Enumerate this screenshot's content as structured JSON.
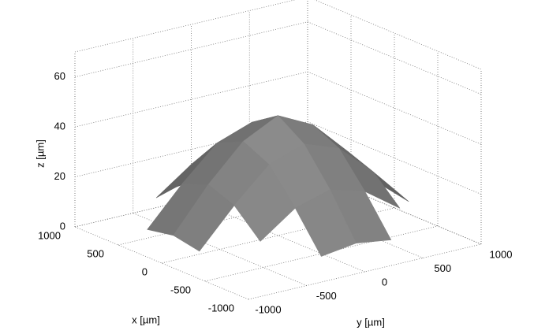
{
  "chart_data": {
    "type": "surface",
    "xlabel": "x [µm]",
    "ylabel": "y [µm]",
    "zlabel": "z [µm]",
    "x": [
      -900,
      -600,
      -300,
      0,
      300,
      600,
      900
    ],
    "y": [
      -900,
      -600,
      -300,
      0,
      300,
      600,
      900
    ],
    "z": [
      [
        null,
        null,
        8,
        10,
        8,
        null,
        null
      ],
      [
        null,
        13,
        23,
        27,
        23,
        13,
        null
      ],
      [
        8,
        23,
        36,
        41,
        36,
        23,
        8
      ],
      [
        10,
        27,
        41,
        48,
        41,
        27,
        10
      ],
      [
        8,
        23,
        36,
        41,
        36,
        23,
        8
      ],
      [
        null,
        13,
        23,
        27,
        23,
        13,
        null
      ],
      [
        null,
        null,
        8,
        10,
        8,
        null,
        null
      ]
    ],
    "color": "#8c8c8c",
    "xlim": [
      -1000,
      1000
    ],
    "ylim": [
      -1000,
      1000
    ],
    "zlim": [
      0,
      70
    ],
    "xticks": [
      -1000,
      -500,
      0,
      500,
      1000
    ],
    "yticks": [
      -1000,
      -500,
      0,
      500,
      1000
    ],
    "zticks": [
      0,
      20,
      40,
      60
    ],
    "grid": true
  }
}
